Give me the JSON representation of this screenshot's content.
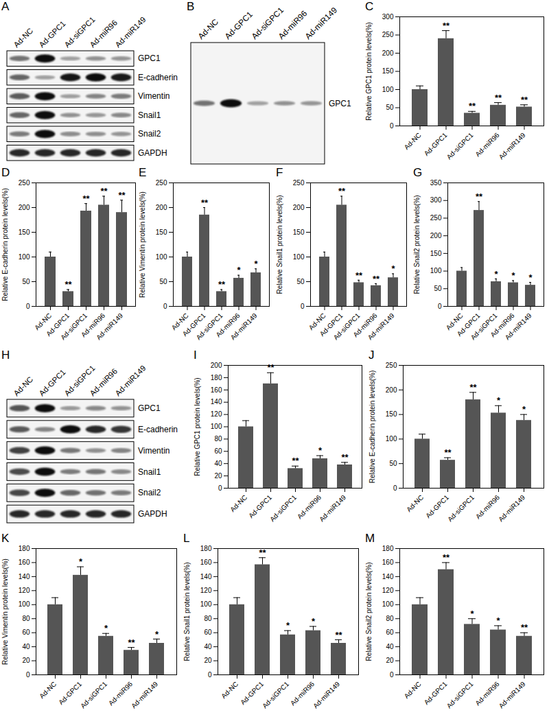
{
  "chart_data": [
    {
      "panel": "C",
      "type": "bar",
      "y_label": "Relative GPC1 protein levels(%)",
      "categories": [
        "Ad-NC",
        "Ad-GPC1",
        "Ad-siGPC1",
        "Ad-miR96",
        "Ad-miR149"
      ],
      "values": [
        100,
        240,
        35,
        57,
        52
      ],
      "errors": [
        10,
        22,
        5,
        7,
        6
      ],
      "significance": [
        null,
        "**",
        "**",
        "**",
        "**"
      ],
      "color": "#555555",
      "ylim": [
        0,
        300
      ],
      "yticks": [
        0,
        50,
        100,
        150,
        200,
        250,
        300
      ],
      "grid": false
    },
    {
      "panel": "D",
      "type": "bar",
      "y_label": "Relative E-cadherin protein levels(%)",
      "categories": [
        "Ad-NC",
        "Ad-GPC1",
        "Ad-siGPC1",
        "Ad-miR96",
        "Ad-miR149"
      ],
      "values": [
        100,
        30,
        193,
        205,
        190
      ],
      "errors": [
        10,
        4,
        15,
        18,
        25
      ],
      "significance": [
        null,
        "**",
        "**",
        "**",
        "**"
      ],
      "color": "#555555",
      "ylim": [
        0,
        250
      ],
      "yticks": [
        0,
        50,
        100,
        150,
        200,
        250
      ],
      "grid": false
    },
    {
      "panel": "E",
      "type": "bar",
      "y_label": "Relative Vimentin protein levels(%)",
      "categories": [
        "Ad-NC",
        "Ad-GPC1",
        "Ad-siGPC1",
        "Ad-miR96",
        "Ad-miR149"
      ],
      "values": [
        100,
        185,
        30,
        57,
        68
      ],
      "errors": [
        10,
        15,
        4,
        6,
        8
      ],
      "significance": [
        null,
        "**",
        "**",
        "*",
        "*"
      ],
      "color": "#555555",
      "ylim": [
        0,
        250
      ],
      "yticks": [
        0,
        50,
        100,
        150,
        200,
        250
      ],
      "grid": false
    },
    {
      "panel": "F",
      "type": "bar",
      "y_label": "Relative Snail1 protein levels(%)",
      "categories": [
        "Ad-NC",
        "Ad-GPC1",
        "Ad-siGPC1",
        "Ad-miR96",
        "Ad-miR149"
      ],
      "values": [
        100,
        205,
        48,
        42,
        58
      ],
      "errors": [
        10,
        18,
        5,
        4,
        8
      ],
      "significance": [
        null,
        "**",
        "**",
        "**",
        "*"
      ],
      "color": "#555555",
      "ylim": [
        0,
        250
      ],
      "yticks": [
        0,
        50,
        100,
        150,
        200,
        250
      ],
      "grid": false
    },
    {
      "panel": "G",
      "type": "bar",
      "y_label": "Relative Snail2 protein levels(%)",
      "categories": [
        "Ad-NC",
        "Ad-GPC1",
        "Ad-siGPC1",
        "Ad-miR96",
        "Ad-miR149"
      ],
      "values": [
        100,
        272,
        70,
        67,
        60
      ],
      "errors": [
        10,
        25,
        8,
        6,
        8
      ],
      "significance": [
        null,
        "**",
        "*",
        "*",
        "*"
      ],
      "color": "#555555",
      "ylim": [
        0,
        350
      ],
      "yticks": [
        0,
        50,
        100,
        150,
        200,
        250,
        300,
        350
      ],
      "grid": false
    },
    {
      "panel": "I",
      "type": "bar",
      "y_label": "Relative GPC1 protein levels(%)",
      "categories": [
        "Ad-NC",
        "Ad-GPC1",
        "Ad-siGPC1",
        "Ad-miR96",
        "Ad-miR149"
      ],
      "values": [
        100,
        170,
        32,
        48,
        38
      ],
      "errors": [
        10,
        18,
        4,
        5,
        4
      ],
      "significance": [
        null,
        "**",
        "**",
        "*",
        "**"
      ],
      "color": "#555555",
      "ylim": [
        0,
        200
      ],
      "yticks": [
        0,
        20,
        40,
        60,
        80,
        100,
        120,
        140,
        160,
        180,
        200
      ],
      "grid": false
    },
    {
      "panel": "J",
      "type": "bar",
      "y_label": "Relative E-cadherin protein levels(%)",
      "categories": [
        "Ad-NC",
        "Ad-GPC1",
        "Ad-siGPC1",
        "Ad-miR96",
        "Ad-miR149"
      ],
      "values": [
        100,
        57,
        180,
        153,
        138
      ],
      "errors": [
        10,
        5,
        15,
        15,
        12
      ],
      "significance": [
        null,
        "**",
        "**",
        "*",
        "*"
      ],
      "color": "#555555",
      "ylim": [
        0,
        250
      ],
      "yticks": [
        0,
        50,
        100,
        150,
        200,
        250
      ],
      "grid": false
    },
    {
      "panel": "K",
      "type": "bar",
      "y_label": "Relative Vimentin protein levels(%)",
      "categories": [
        "Ad-NC",
        "Ad-GPC1",
        "Ad-siGPC1",
        "Ad-miR96",
        "Ad-miR149"
      ],
      "values": [
        100,
        142,
        55,
        35,
        45
      ],
      "errors": [
        10,
        12,
        4,
        4,
        6
      ],
      "significance": [
        null,
        "*",
        "*",
        "**",
        "*"
      ],
      "color": "#555555",
      "ylim": [
        0,
        180
      ],
      "yticks": [
        0,
        20,
        40,
        60,
        80,
        100,
        120,
        140,
        160,
        180
      ],
      "grid": false
    },
    {
      "panel": "L",
      "type": "bar",
      "y_label": "Relative Snail1 protein levels(%)",
      "categories": [
        "Ad-NC",
        "Ad-GPC1",
        "Ad-siGPC1",
        "Ad-miR96",
        "Ad-miR149"
      ],
      "values": [
        100,
        157,
        57,
        63,
        45
      ],
      "errors": [
        10,
        10,
        6,
        6,
        5
      ],
      "significance": [
        null,
        "**",
        "*",
        "*",
        "**"
      ],
      "color": "#555555",
      "ylim": [
        0,
        180
      ],
      "yticks": [
        0,
        20,
        40,
        60,
        80,
        100,
        120,
        140,
        160,
        180
      ],
      "grid": false
    },
    {
      "panel": "M",
      "type": "bar",
      "y_label": "Relative Snail2 protein levels(%)",
      "categories": [
        "Ad-NC",
        "Ad-GPC1",
        "Ad-siGPC1",
        "Ad-miR96",
        "Ad-miR149"
      ],
      "values": [
        100,
        150,
        72,
        64,
        55
      ],
      "errors": [
        10,
        10,
        8,
        6,
        5
      ],
      "significance": [
        null,
        "**",
        "*",
        "*",
        "**"
      ],
      "color": "#555555",
      "ylim": [
        0,
        180
      ],
      "yticks": [
        0,
        20,
        40,
        60,
        80,
        100,
        120,
        140,
        160,
        180
      ],
      "grid": false
    }
  ],
  "blots": [
    {
      "panel": "A",
      "lanes": [
        "Ad-NC",
        "Ad-GPC1",
        "Ad-siGPC1",
        "Ad-miR96",
        "Ad-miR149"
      ],
      "rows": [
        {
          "label": "GPC1",
          "panel": "C"
        },
        {
          "label": "E-cadherin",
          "panel": "D"
        },
        {
          "label": "Vimentin",
          "panel": "E"
        },
        {
          "label": "Snail1",
          "panel": "F"
        },
        {
          "label": "Snail2",
          "panel": "G"
        },
        {
          "label": "GAPDH",
          "panel": null
        }
      ]
    },
    {
      "panel": "B",
      "lanes": [
        "Ad-NC",
        "Ad-GPC1",
        "Ad-siGPC1",
        "Ad-miR96",
        "Ad-miR149"
      ],
      "rows": [
        {
          "label": "GPC1",
          "panel": "C"
        }
      ]
    },
    {
      "panel": "H",
      "lanes": [
        "Ad-NC",
        "Ad-GPC1",
        "Ad-siGPC1",
        "Ad-miR96",
        "Ad-miR149"
      ],
      "rows": [
        {
          "label": "GPC1",
          "panel": "I"
        },
        {
          "label": "E-cadherin",
          "panel": "J"
        },
        {
          "label": "Vimentin",
          "panel": "K"
        },
        {
          "label": "Snail1",
          "panel": "L"
        },
        {
          "label": "Snail2",
          "panel": "M"
        },
        {
          "label": "GAPDH",
          "panel": null
        }
      ]
    }
  ]
}
